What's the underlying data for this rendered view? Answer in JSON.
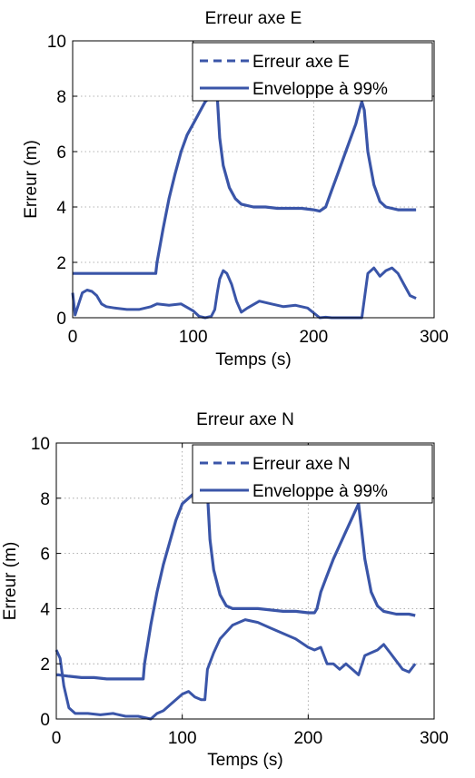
{
  "colors": {
    "series": "#3a55a8",
    "axis": "#000000",
    "grid": "#9a9a9a",
    "background": "#ffffff"
  },
  "chart_data": [
    {
      "type": "line",
      "title": "Erreur axe E",
      "xlabel": "Temps (s)",
      "ylabel": "Erreur (m)",
      "xlim": [
        0,
        300
      ],
      "ylim": [
        0,
        10
      ],
      "xticks": [
        0,
        100,
        200,
        300
      ],
      "yticks": [
        0,
        2,
        4,
        6,
        8,
        10
      ],
      "grid": true,
      "legend_position": "top-right",
      "series": [
        {
          "name": "Erreur axe E",
          "style": "dashed",
          "x": [
            0,
            2,
            5,
            8,
            12,
            16,
            20,
            24,
            28,
            35,
            45,
            55,
            65,
            70,
            80,
            90,
            100,
            105,
            110,
            115,
            118,
            120,
            122,
            125,
            128,
            132,
            136,
            140,
            145,
            155,
            165,
            175,
            185,
            195,
            205,
            210,
            215,
            225,
            235,
            240,
            245,
            250,
            255,
            260,
            265,
            270,
            275,
            280,
            285
          ],
          "y": [
            0.9,
            0.1,
            0.5,
            0.9,
            1.0,
            0.95,
            0.8,
            0.5,
            0.4,
            0.35,
            0.3,
            0.3,
            0.4,
            0.5,
            0.45,
            0.5,
            0.25,
            0.05,
            0.0,
            0.05,
            0.3,
            0.9,
            1.4,
            1.7,
            1.6,
            1.2,
            0.6,
            0.2,
            0.35,
            0.6,
            0.5,
            0.4,
            0.45,
            0.35,
            0.0,
            0.02,
            0.0,
            0.0,
            0.0,
            0.0,
            1.6,
            1.8,
            1.5,
            1.7,
            1.8,
            1.6,
            1.2,
            0.8,
            0.7
          ]
        },
        {
          "name": "Enveloppe à 99%",
          "style": "solid",
          "x": [
            0,
            2,
            10,
            20,
            30,
            40,
            50,
            60,
            69,
            70,
            75,
            80,
            85,
            90,
            95,
            100,
            105,
            110,
            115,
            117,
            119,
            120,
            122,
            125,
            130,
            135,
            140,
            150,
            160,
            170,
            180,
            190,
            200,
            205,
            210,
            215,
            220,
            225,
            230,
            235,
            238,
            240,
            242,
            245,
            250,
            255,
            260,
            270,
            280,
            285
          ],
          "y": [
            1.6,
            1.6,
            1.6,
            1.6,
            1.6,
            1.6,
            1.6,
            1.6,
            1.6,
            2.0,
            3.2,
            4.3,
            5.2,
            6.0,
            6.6,
            7.0,
            7.4,
            7.8,
            8.0,
            8.0,
            8.0,
            8.0,
            6.5,
            5.5,
            4.7,
            4.3,
            4.1,
            4.0,
            4.0,
            3.95,
            3.95,
            3.95,
            3.9,
            3.85,
            4.0,
            4.6,
            5.2,
            5.8,
            6.4,
            7.0,
            7.5,
            7.8,
            7.5,
            6.0,
            4.8,
            4.2,
            4.0,
            3.9,
            3.9,
            3.9
          ]
        }
      ]
    },
    {
      "type": "line",
      "title": "Erreur axe N",
      "xlabel": "Temps (s)",
      "ylabel": "Erreur (m)",
      "xlim": [
        0,
        300
      ],
      "ylim": [
        0,
        10
      ],
      "xticks": [
        0,
        100,
        200,
        300
      ],
      "yticks": [
        0,
        2,
        4,
        6,
        8,
        10
      ],
      "grid": true,
      "legend_position": "top-right",
      "series": [
        {
          "name": "Erreur axe N",
          "style": "dashed",
          "x": [
            0,
            3,
            6,
            10,
            15,
            25,
            35,
            45,
            55,
            65,
            70,
            75,
            80,
            85,
            90,
            95,
            100,
            105,
            110,
            115,
            118,
            120,
            125,
            130,
            140,
            150,
            160,
            170,
            180,
            190,
            200,
            205,
            210,
            215,
            220,
            225,
            230,
            235,
            240,
            245,
            250,
            255,
            260,
            265,
            270,
            275,
            280,
            285
          ],
          "y": [
            2.5,
            2.2,
            1.2,
            0.4,
            0.2,
            0.2,
            0.15,
            0.2,
            0.1,
            0.1,
            0.05,
            0.0,
            0.2,
            0.3,
            0.5,
            0.7,
            0.9,
            1.0,
            0.8,
            0.7,
            0.7,
            1.8,
            2.4,
            2.9,
            3.4,
            3.6,
            3.5,
            3.3,
            3.1,
            2.9,
            2.6,
            2.5,
            2.6,
            2.0,
            2.0,
            1.8,
            2.0,
            1.8,
            1.6,
            2.3,
            2.4,
            2.5,
            2.7,
            2.4,
            2.1,
            1.8,
            1.7,
            2.0
          ]
        },
        {
          "name": "Enveloppe à 99%",
          "style": "solid",
          "x": [
            0,
            2,
            10,
            20,
            30,
            40,
            50,
            60,
            69,
            70,
            75,
            80,
            85,
            90,
            95,
            100,
            105,
            110,
            115,
            118,
            119,
            120,
            122,
            125,
            130,
            135,
            140,
            150,
            160,
            170,
            180,
            190,
            200,
            205,
            207,
            210,
            215,
            220,
            225,
            230,
            235,
            238,
            240,
            242,
            245,
            250,
            255,
            260,
            270,
            280,
            285
          ],
          "y": [
            1.6,
            1.6,
            1.55,
            1.5,
            1.5,
            1.45,
            1.45,
            1.45,
            1.45,
            2.0,
            3.4,
            4.6,
            5.6,
            6.4,
            7.2,
            7.8,
            8.0,
            8.2,
            8.2,
            8.2,
            8.2,
            8.2,
            6.5,
            5.4,
            4.5,
            4.1,
            4.0,
            4.0,
            4.0,
            3.95,
            3.9,
            3.9,
            3.85,
            3.85,
            4.0,
            4.6,
            5.2,
            5.8,
            6.3,
            6.8,
            7.3,
            7.6,
            7.8,
            7.0,
            5.8,
            4.6,
            4.1,
            3.9,
            3.8,
            3.8,
            3.75
          ]
        }
      ]
    }
  ]
}
